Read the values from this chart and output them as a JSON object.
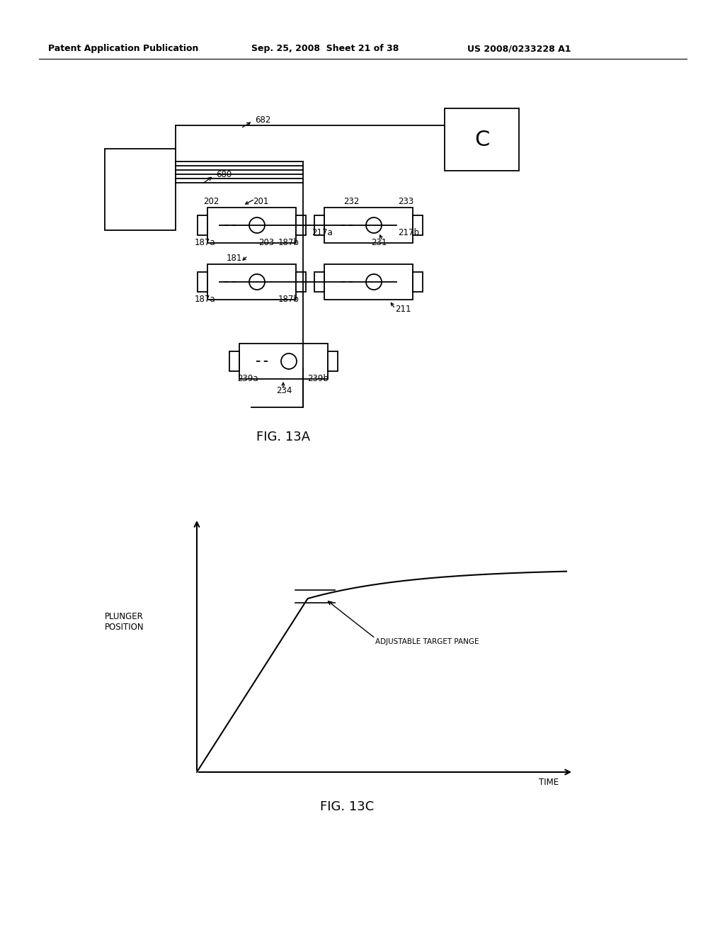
{
  "bg_color": "#ffffff",
  "header_left": "Patent Application Publication",
  "header_center": "Sep. 25, 2008  Sheet 21 of 38",
  "header_right": "US 2008/0233228 A1",
  "fig13a_label": "FIG. 13A",
  "fig13c_label": "FIG. 13C",
  "plunger_ylabel": "PLUNGER\nPOSITION",
  "time_xlabel": "TIME",
  "annotation_text": "ADJUSTABLE TARGET PANGE",
  "label_682": "682",
  "label_680": "680",
  "label_202": "202",
  "label_201": "201",
  "label_203": "203",
  "label_181": "181",
  "label_187a_1": "187a",
  "label_187b_1": "187b",
  "label_187a_2": "187a",
  "label_187b_2": "187b",
  "label_232": "232",
  "label_233": "233",
  "label_217a": "217a",
  "label_217b": "217b",
  "label_231": "231",
  "label_211": "211",
  "label_239a": "239a",
  "label_239b": "239b",
  "label_234": "234"
}
